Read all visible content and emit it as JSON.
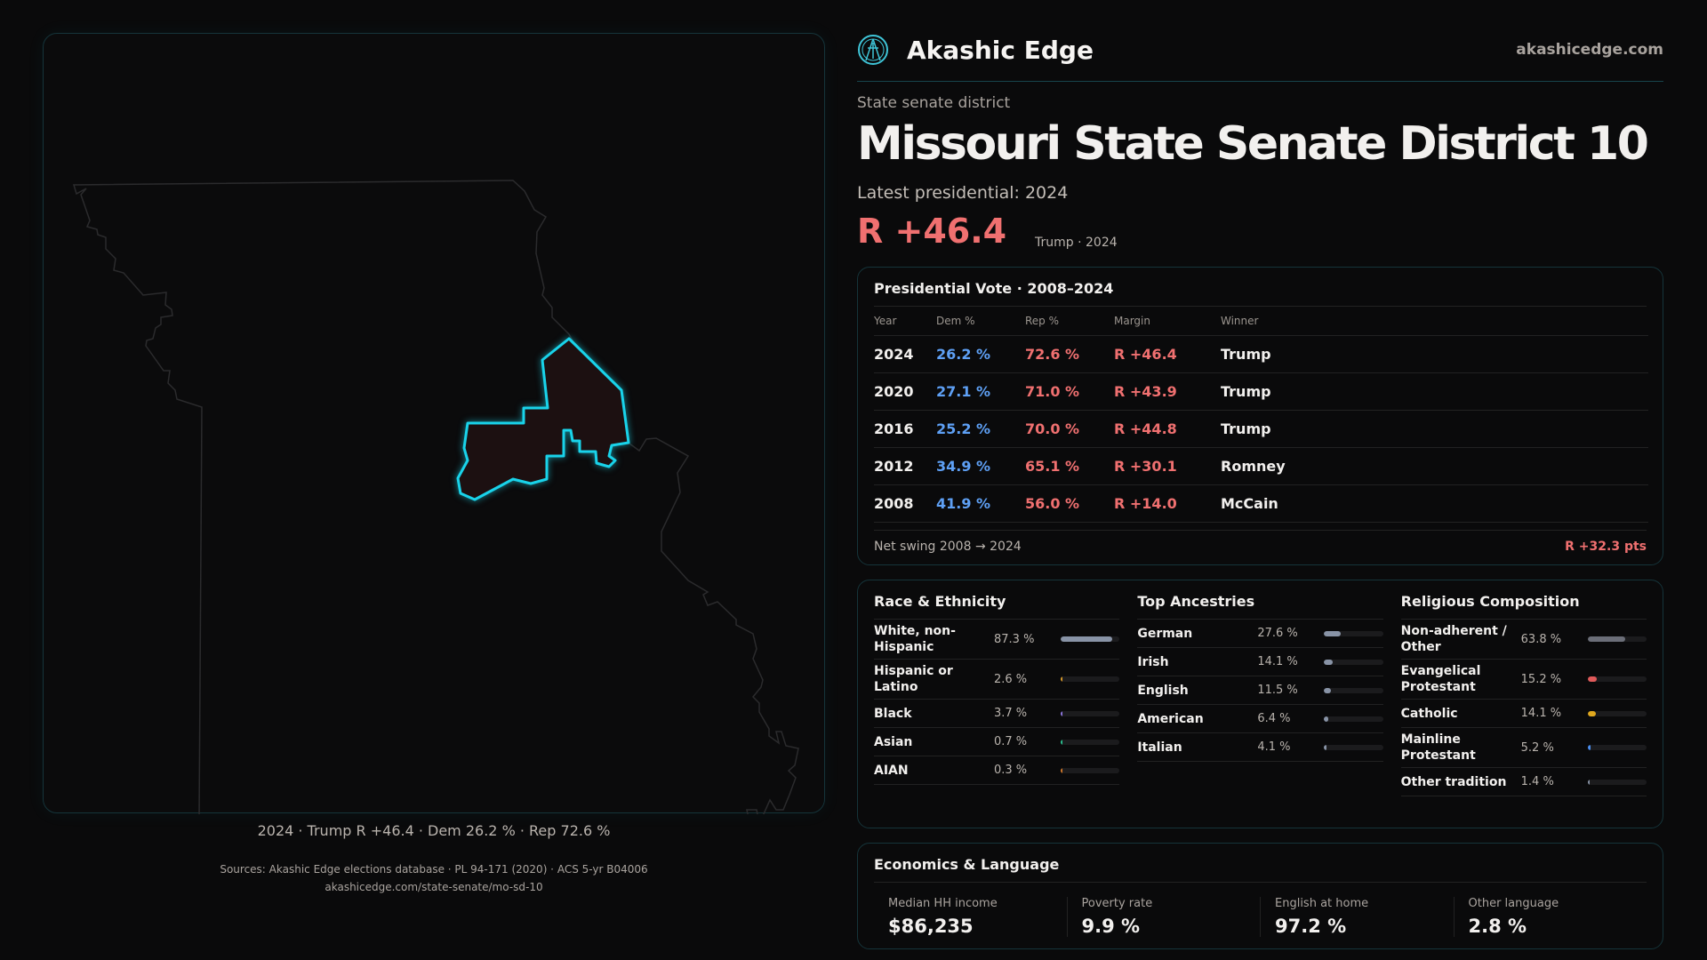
{
  "brand": {
    "name": "Akashic Edge",
    "site": "akashicedge.com",
    "logo_icon": "compass-figure-icon"
  },
  "header": {
    "kicker": "State senate district",
    "title": "Missouri State Senate District 10",
    "latest": "Latest presidential: 2024",
    "margin": "R +46.4",
    "margin_sub": "Trump · 2024"
  },
  "map": {
    "caption": "2024 · Trump R +46.4 · Dem 26.2 % · Rep 72.6 %",
    "highlight_color": "#19d3ea",
    "state": "Missouri"
  },
  "presidential": {
    "title": "Presidential Vote · 2008–2024",
    "columns": [
      "Year",
      "Dem %",
      "Rep %",
      "Margin",
      "Winner"
    ],
    "rows": [
      [
        "2024",
        "26.2 %",
        "72.6 %",
        "R +46.4",
        "Trump"
      ],
      [
        "2020",
        "27.1 %",
        "71.0 %",
        "R +43.9",
        "Trump"
      ],
      [
        "2016",
        "25.2 %",
        "70.0 %",
        "R +44.8",
        "Trump"
      ],
      [
        "2012",
        "34.9 %",
        "65.1 %",
        "R +30.1",
        "Romney"
      ],
      [
        "2008",
        "41.9 %",
        "56.0 %",
        "R +14.0",
        "McCain"
      ]
    ],
    "swing_label": "Net swing 2008 → 2024",
    "swing_value": "R +32.3 pts"
  },
  "race": {
    "title": "Race & Ethnicity",
    "items": [
      {
        "label": "White, non-Hispanic",
        "value": "87.3 %",
        "pct": 87.3,
        "color": "#8893a6"
      },
      {
        "label": "Hispanic or Latino",
        "value": "2.6 %",
        "pct": 2.6,
        "color": "#d89a2b"
      },
      {
        "label": "Black",
        "value": "3.7 %",
        "pct": 3.7,
        "color": "#8f78e0"
      },
      {
        "label": "Asian",
        "value": "0.7 %",
        "pct": 0.7,
        "color": "#2bbf8f"
      },
      {
        "label": "AIAN",
        "value": "0.3 %",
        "pct": 0.3,
        "color": "#d0782b"
      }
    ]
  },
  "ancestry": {
    "title": "Top Ancestries",
    "items": [
      {
        "label": "German",
        "value": "27.6 %",
        "pct": 27.6,
        "color": "#8893a6"
      },
      {
        "label": "Irish",
        "value": "14.1 %",
        "pct": 14.1,
        "color": "#8893a6"
      },
      {
        "label": "English",
        "value": "11.5 %",
        "pct": 11.5,
        "color": "#8893a6"
      },
      {
        "label": "American",
        "value": "6.4 %",
        "pct": 6.4,
        "color": "#8893a6"
      },
      {
        "label": "Italian",
        "value": "4.1 %",
        "pct": 4.1,
        "color": "#8893a6"
      }
    ]
  },
  "religion": {
    "title": "Religious Composition",
    "items": [
      {
        "label": "Non-adherent / Other",
        "value": "63.8 %",
        "pct": 63.8,
        "color": "#6b6e78"
      },
      {
        "label": "Evangelical Protestant",
        "value": "15.2 %",
        "pct": 15.2,
        "color": "#e05a5a"
      },
      {
        "label": "Catholic",
        "value": "14.1 %",
        "pct": 14.1,
        "color": "#e0a81e"
      },
      {
        "label": "Mainline Protestant",
        "value": "5.2 %",
        "pct": 5.2,
        "color": "#4a8ef0"
      },
      {
        "label": "Other tradition",
        "value": "1.4 %",
        "pct": 1.4,
        "color": "#8893a6"
      }
    ]
  },
  "economics": {
    "title": "Economics & Language",
    "stats": [
      {
        "label": "Median HH income",
        "value": "$86,235"
      },
      {
        "label": "Poverty rate",
        "value": "9.9 %"
      },
      {
        "label": "English at home",
        "value": "97.2 %"
      },
      {
        "label": "Other language",
        "value": "2.8 %"
      }
    ]
  },
  "sources": {
    "line1": "Sources: Akashic Edge elections database · PL 94-171 (2020) · ACS 5-yr B04006",
    "line2": "akashicedge.com/state-senate/mo-sd-10"
  }
}
